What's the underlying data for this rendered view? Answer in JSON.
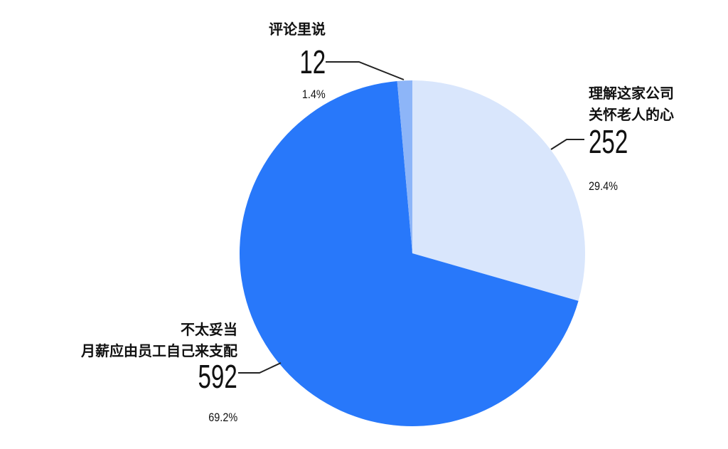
{
  "chart_data": {
    "type": "pie",
    "start": "top",
    "direction": "clockwise",
    "slices": [
      {
        "label_lines": [
          "理解这家公司",
          "关怀老人的心"
        ],
        "value": 252,
        "percent": "29.4%",
        "color": "#d9e6fc"
      },
      {
        "label_lines": [
          "不太妥当",
          "月薪应由员工自己来支配"
        ],
        "value": 592,
        "percent": "69.2%",
        "color": "#2878fa"
      },
      {
        "label_lines": [
          "评论里说"
        ],
        "value": 12,
        "percent": "1.4%",
        "color": "#8db5f8"
      }
    ]
  }
}
